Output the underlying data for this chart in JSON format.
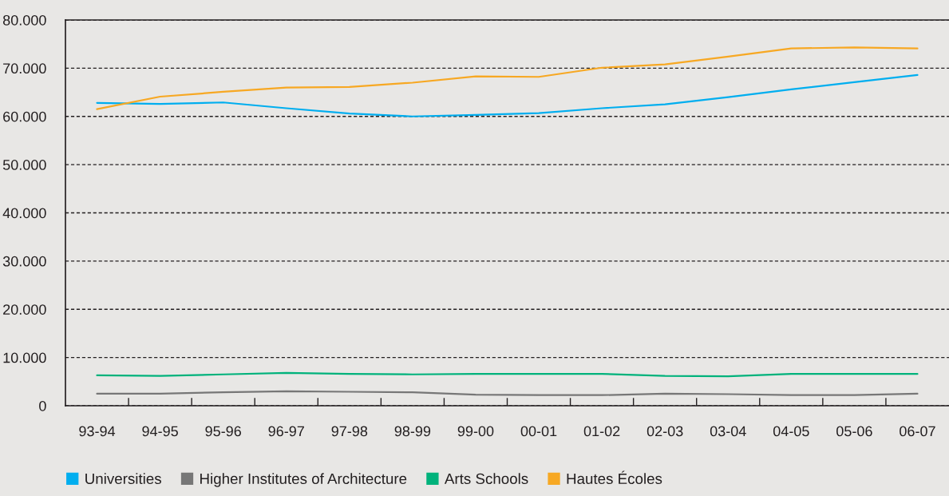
{
  "chart_data": {
    "type": "line",
    "categories": [
      "93-94",
      "94-95",
      "95-96",
      "96-97",
      "97-98",
      "98-99",
      "99-00",
      "00-01",
      "01-02",
      "02-03",
      "03-04",
      "04-05",
      "05-06",
      "06-07"
    ],
    "series": [
      {
        "name": "Universities",
        "color": "#00aeef",
        "values": [
          62800,
          62600,
          62900,
          61700,
          60600,
          60000,
          60300,
          60700,
          61700,
          62500,
          64000,
          65600,
          67100,
          68600
        ]
      },
      {
        "name": "Higher Institutes of Architecture",
        "color": "#777777",
        "values": [
          2500,
          2500,
          2800,
          3000,
          2900,
          2800,
          2300,
          2200,
          2200,
          2500,
          2400,
          2200,
          2200,
          2500
        ]
      },
      {
        "name": "Arts Schools",
        "color": "#00b27b",
        "values": [
          6300,
          6200,
          6500,
          6800,
          6600,
          6500,
          6600,
          6600,
          6600,
          6200,
          6100,
          6600,
          6600,
          6600
        ]
      },
      {
        "name": "Hautes Écoles",
        "color": "#f7a823",
        "values": [
          61500,
          64100,
          65100,
          66000,
          66100,
          67000,
          68300,
          68200,
          70100,
          70800,
          72400,
          74100,
          74300,
          74100
        ]
      }
    ],
    "ylim": [
      0,
      80000
    ],
    "yticks": [
      0,
      {
        "value": 10000,
        "label": "10.000"
      },
      {
        "value": 20000,
        "label": "20.000"
      },
      {
        "value": 30000,
        "label": "30.000"
      },
      {
        "value": 40000,
        "label": "40.000"
      },
      {
        "value": 50000,
        "label": "50.000"
      },
      {
        "value": 60000,
        "label": "60.000"
      },
      {
        "value": 70000,
        "label": "70.000"
      },
      {
        "value": 80000,
        "label": "80.000"
      }
    ],
    "grid": "y",
    "legend": "bottom"
  }
}
